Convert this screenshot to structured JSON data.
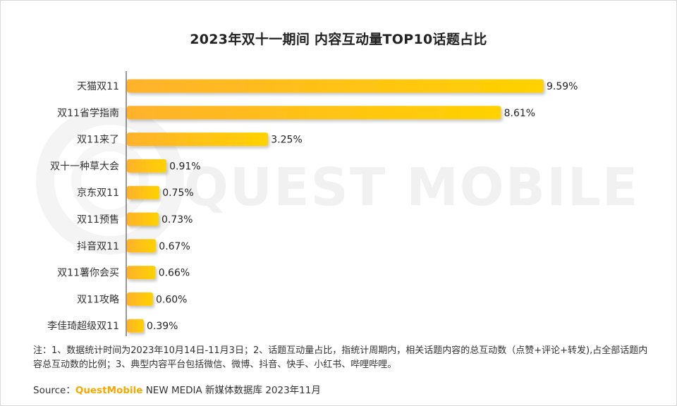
{
  "title": "2023年双十一期间 内容互动量TOP10话题占比",
  "watermark": "QUEST MOBILE",
  "note": "注：1、数据统计时间为2023年10月14日-11月3日；2、话题互动量占比，指统计周期内，相关话题内容的总互动数（点赞+评论+转发),占全部话题内容总互动数的比例；3、典型内容平台包括微信、微博、抖音、快手、小红书、哔哩哔哩。",
  "source": {
    "label": "Source：",
    "brand": "QuestMobile",
    "rest": "NEW MEDIA 新媒体数据库 2023年11月"
  },
  "colors": {
    "bar_start": "#ffb22c",
    "bar_end": "#ffd200",
    "axis": "#333333"
  },
  "chart_data": {
    "type": "bar",
    "orientation": "horizontal",
    "categories": [
      "天猫双11",
      "双11省学指南",
      "双11来了",
      "双十一种草大会",
      "京东双11",
      "双11预售",
      "抖音双11",
      "双11薯你会买",
      "双11攻略",
      "李佳琦超级双11"
    ],
    "values": [
      9.59,
      8.61,
      3.25,
      0.91,
      0.75,
      0.73,
      0.67,
      0.66,
      0.6,
      0.39
    ],
    "value_labels": [
      "9.59%",
      "8.61%",
      "3.25%",
      "0.91%",
      "0.75%",
      "0.73%",
      "0.67%",
      "0.66%",
      "0.60%",
      "0.39%"
    ],
    "unit": "%",
    "xlim": [
      0,
      10
    ],
    "grid": false,
    "legend": "none"
  }
}
